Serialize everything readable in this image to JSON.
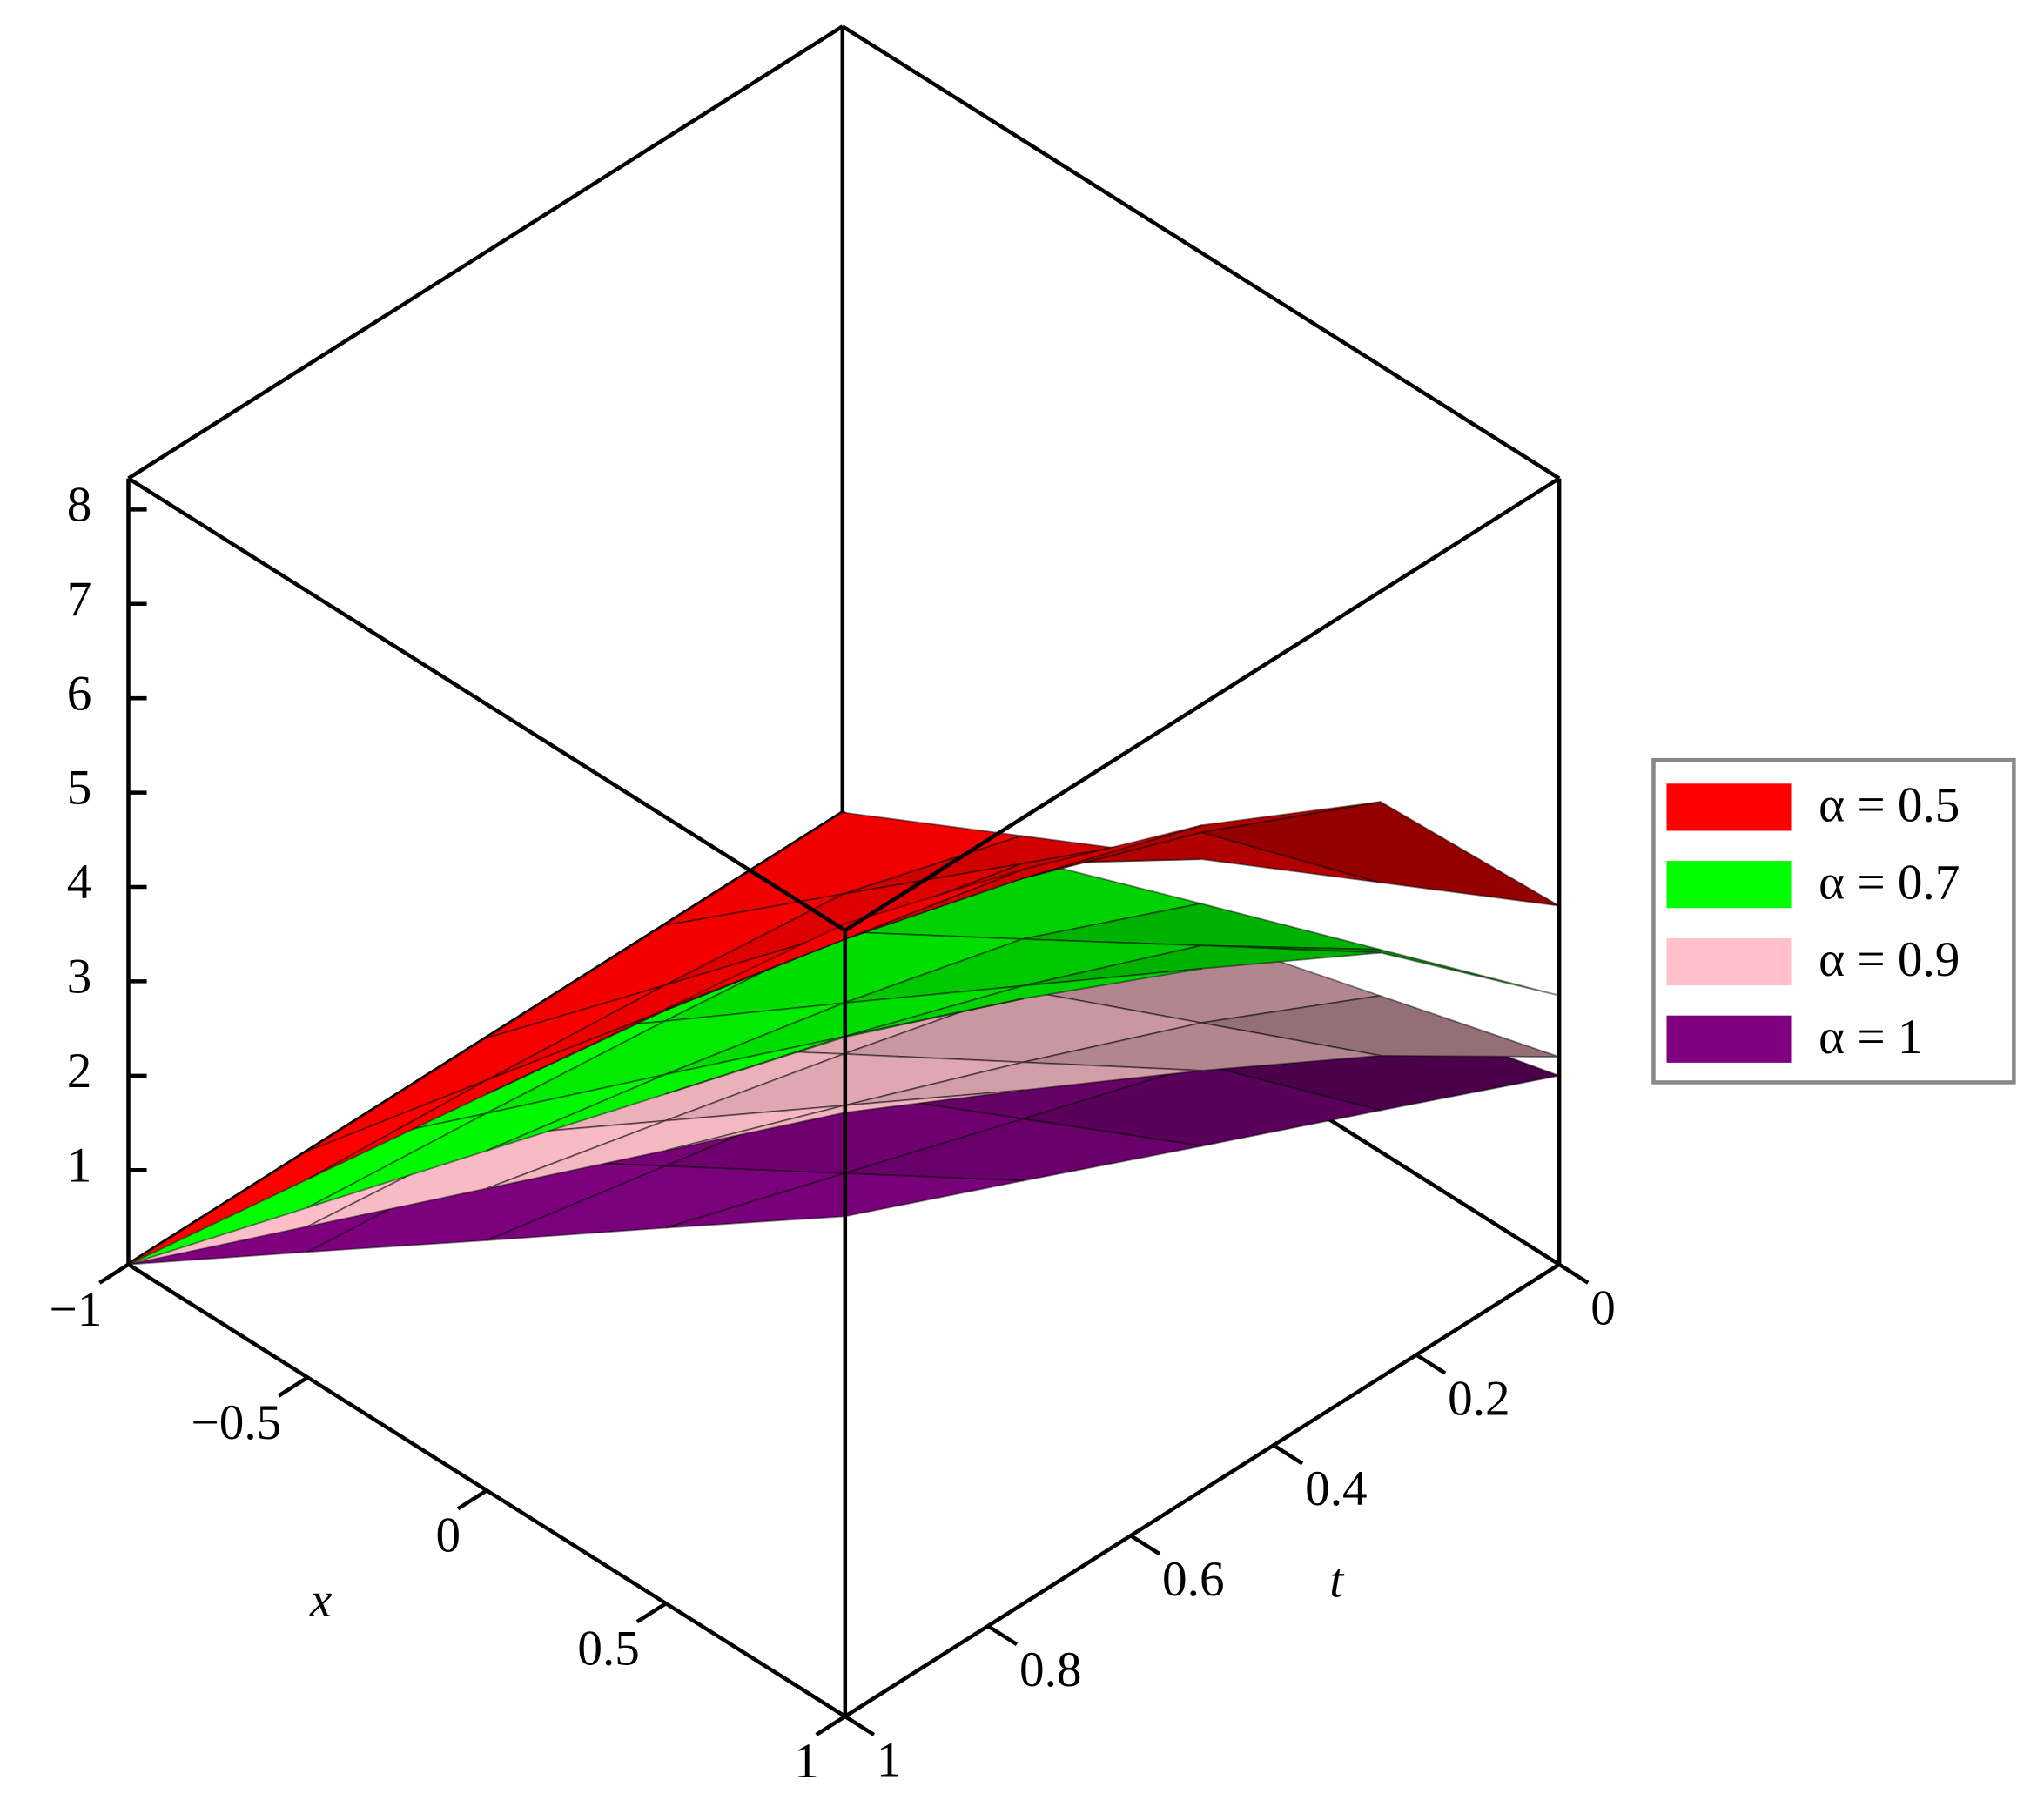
{
  "chart_data": {
    "type": "surface",
    "xlabel": "x",
    "ylabel": "t",
    "xlim": [
      -1,
      1
    ],
    "ylim": [
      0,
      1
    ],
    "zlim": [
      0,
      8.33
    ],
    "xticks": [
      {
        "value": -1,
        "label": "−1"
      },
      {
        "value": -0.5,
        "label": "−0.5"
      },
      0,
      0.5,
      1
    ],
    "yticks": [
      0,
      0.2,
      0.4,
      0.6,
      0.8,
      1
    ],
    "zticks": [
      1,
      2,
      3,
      4,
      5,
      6,
      7,
      8
    ],
    "x": [
      -1,
      -0.5,
      0,
      0.5,
      1
    ],
    "y": [
      0,
      0.25,
      0.5,
      0.75,
      1
    ],
    "legend": "right",
    "series": [
      {
        "name": "α = 0.5",
        "color": "#ff0000",
        "values": [
          [
            0,
            0.95,
            1.9,
            2.85,
            3.8
          ],
          [
            0,
            1.53,
            3.05,
            4.58,
            6.1
          ],
          [
            0,
            1.76,
            3.53,
            5.29,
            7.05
          ],
          [
            0,
            1.95,
            3.89,
            5.84,
            7.78
          ],
          [
            0,
            2.1,
            4.2,
            6.3,
            8.4
          ]
        ]
      },
      {
        "name": "α = 0.7",
        "color": "#00ff00",
        "values": [
          [
            0,
            0.71,
            1.43,
            2.14,
            2.85
          ],
          [
            0,
            1.13,
            2.25,
            3.38,
            4.5
          ],
          [
            0,
            1.38,
            2.77,
            4.15,
            5.53
          ],
          [
            0,
            1.6,
            3.21,
            4.81,
            6.41
          ],
          [
            0,
            1.8,
            3.6,
            5.4,
            7.2
          ]
        ]
      },
      {
        "name": "α = 0.9",
        "color": "#ffc0cb",
        "values": [
          [
            0,
            0.55,
            1.1,
            1.65,
            2.2
          ],
          [
            0,
            0.85,
            1.71,
            2.56,
            3.41
          ],
          [
            0,
            1.11,
            2.23,
            3.34,
            4.45
          ],
          [
            0,
            1.36,
            2.72,
            4.08,
            5.44
          ],
          [
            0,
            1.6,
            3.2,
            4.8,
            6.4
          ]
        ]
      },
      {
        "name": "α = 1",
        "color": "#800080",
        "values": [
          [
            0,
            0.5,
            1,
            1.5,
            2
          ],
          [
            0,
            0.71,
            1.41,
            2.12,
            2.83
          ],
          [
            0,
            0.91,
            1.83,
            2.74,
            3.65
          ],
          [
            0,
            1.12,
            2.24,
            3.36,
            4.48
          ],
          [
            0,
            1.33,
            2.65,
            3.98,
            5.3
          ]
        ]
      }
    ]
  }
}
